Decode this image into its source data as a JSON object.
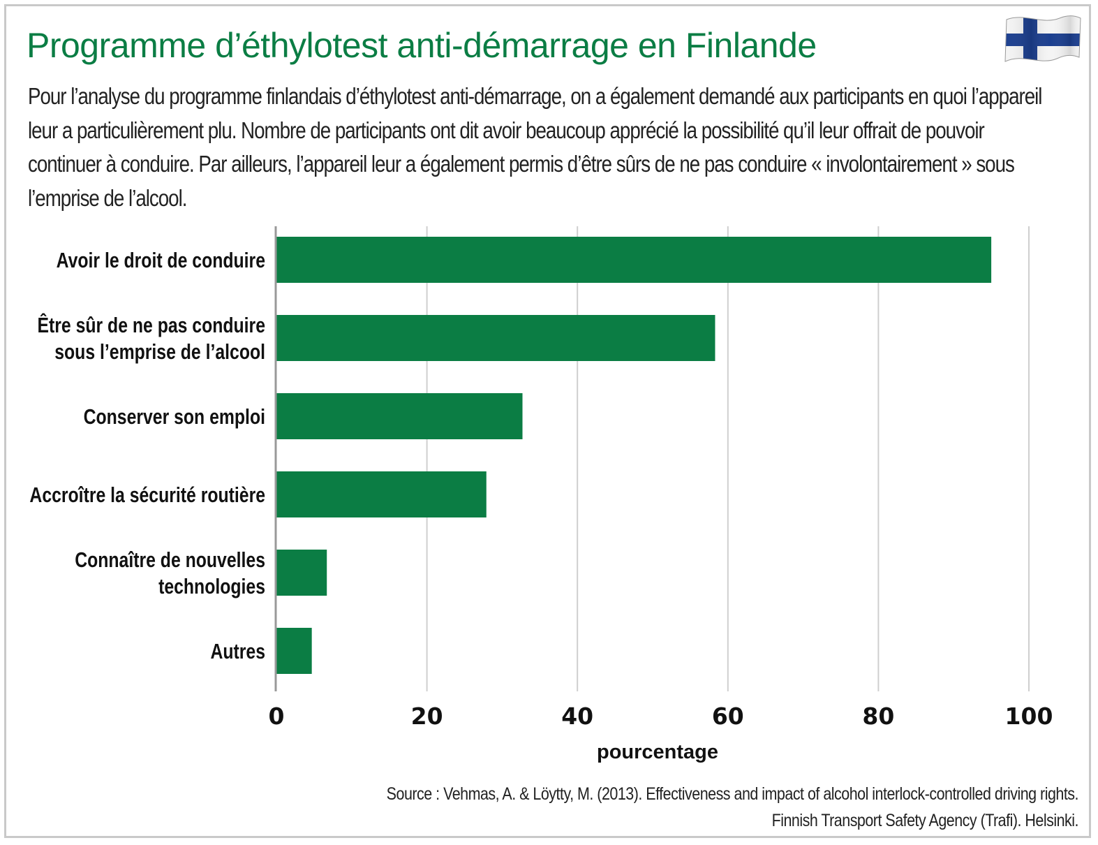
{
  "header": {
    "title": "Programme d’éthylotest anti-démarrage en Finlande",
    "description": "Pour l’analyse du programme finlandais d’éthylotest anti-démarrage, on a également demandé aux participants en quoi l’appareil leur a particulièrement plu. Nombre de participants ont dit avoir beaucoup apprécié la possibilité qu’il leur offrait de pouvoir continuer à conduire. Par ailleurs, l’appareil leur a également permis d’être sûrs de ne pas conduire « involontairement » sous l’emprise de l’alcool.",
    "flag_icon": "finland-flag-icon"
  },
  "colors": {
    "title": "#0b7d44",
    "bar": "#0b7d44",
    "grid": "#cfcfcf",
    "axis": "#999999",
    "flag_blue": "#1c3f8f"
  },
  "chart_data": {
    "type": "bar",
    "orientation": "horizontal",
    "categories": [
      "Avoir le droit de conduire",
      "Être sûr de ne pas conduire\nsous l’emprise de l’alcool",
      "Conserver son emploi",
      "Accroître la sécurité routière",
      "Connaître de nouvelles\ntechnologies",
      "Autres"
    ],
    "values": [
      95,
      58.3,
      32.7,
      27.9,
      6.7,
      4.7
    ],
    "xlabel": "pourcentage",
    "ylabel": "",
    "xlim": [
      0,
      100
    ],
    "xticks": [
      "0",
      "20",
      "40",
      "60",
      "80",
      "100"
    ],
    "grid": true,
    "legend": "none"
  },
  "footer": {
    "source_line1": "Source : Vehmas, A. & Löytty, M. (2013). Effectiveness and impact of alcohol interlock-controlled driving rights.",
    "source_line2": "Finnish Transport Safety Agency (Trafi). Helsinki."
  }
}
